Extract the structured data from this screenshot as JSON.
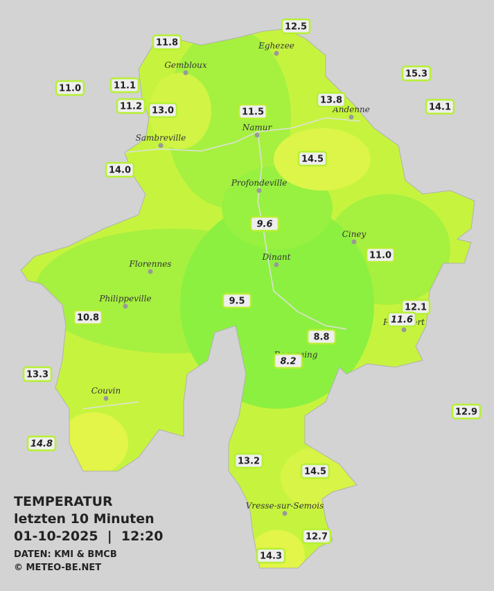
{
  "title": {
    "lines": [
      "TEMPERATUR",
      "letzten 10 Minuten",
      "01-10-2025  |  12:20"
    ],
    "credits": [
      "DATEN: KMI & BMCB",
      "© METEO-BE.NET"
    ]
  },
  "cities": [
    "Eghezee",
    "Gembloux",
    "Andenne",
    "Namur",
    "Sambreville",
    "Profondeville",
    "Ciney",
    "Dinant",
    "Florennes",
    "Philippeville",
    "Rochefort",
    "Beauraing",
    "Couvin",
    "Vresse-sur-Semois"
  ],
  "stations": [
    {
      "text": "12.5",
      "italic": false
    },
    {
      "text": "11.8",
      "italic": false
    },
    {
      "text": "15.3",
      "italic": false
    },
    {
      "text": "11.0",
      "italic": false
    },
    {
      "text": "11.1",
      "italic": false
    },
    {
      "text": "13.8",
      "italic": false
    },
    {
      "text": "14.1",
      "italic": false
    },
    {
      "text": "11.2",
      "italic": false
    },
    {
      "text": "13.0",
      "italic": false
    },
    {
      "text": "11.5",
      "italic": false
    },
    {
      "text": "14.5",
      "italic": false
    },
    {
      "text": "14.0",
      "italic": false
    },
    {
      "text": "9.6",
      "italic": true
    },
    {
      "text": "11.0",
      "italic": false
    },
    {
      "text": "9.5",
      "italic": false
    },
    {
      "text": "12.1",
      "italic": false
    },
    {
      "text": "11.6",
      "italic": true
    },
    {
      "text": "10.8",
      "italic": false
    },
    {
      "text": "8.8",
      "italic": false
    },
    {
      "text": "8.2",
      "italic": true
    },
    {
      "text": "13.3",
      "italic": false
    },
    {
      "text": "12.9",
      "italic": false
    },
    {
      "text": "14.8",
      "italic": true
    },
    {
      "text": "13.2",
      "italic": false
    },
    {
      "text": "14.5",
      "italic": false
    },
    {
      "text": "12.7",
      "italic": false
    },
    {
      "text": "14.3",
      "italic": false
    }
  ]
}
